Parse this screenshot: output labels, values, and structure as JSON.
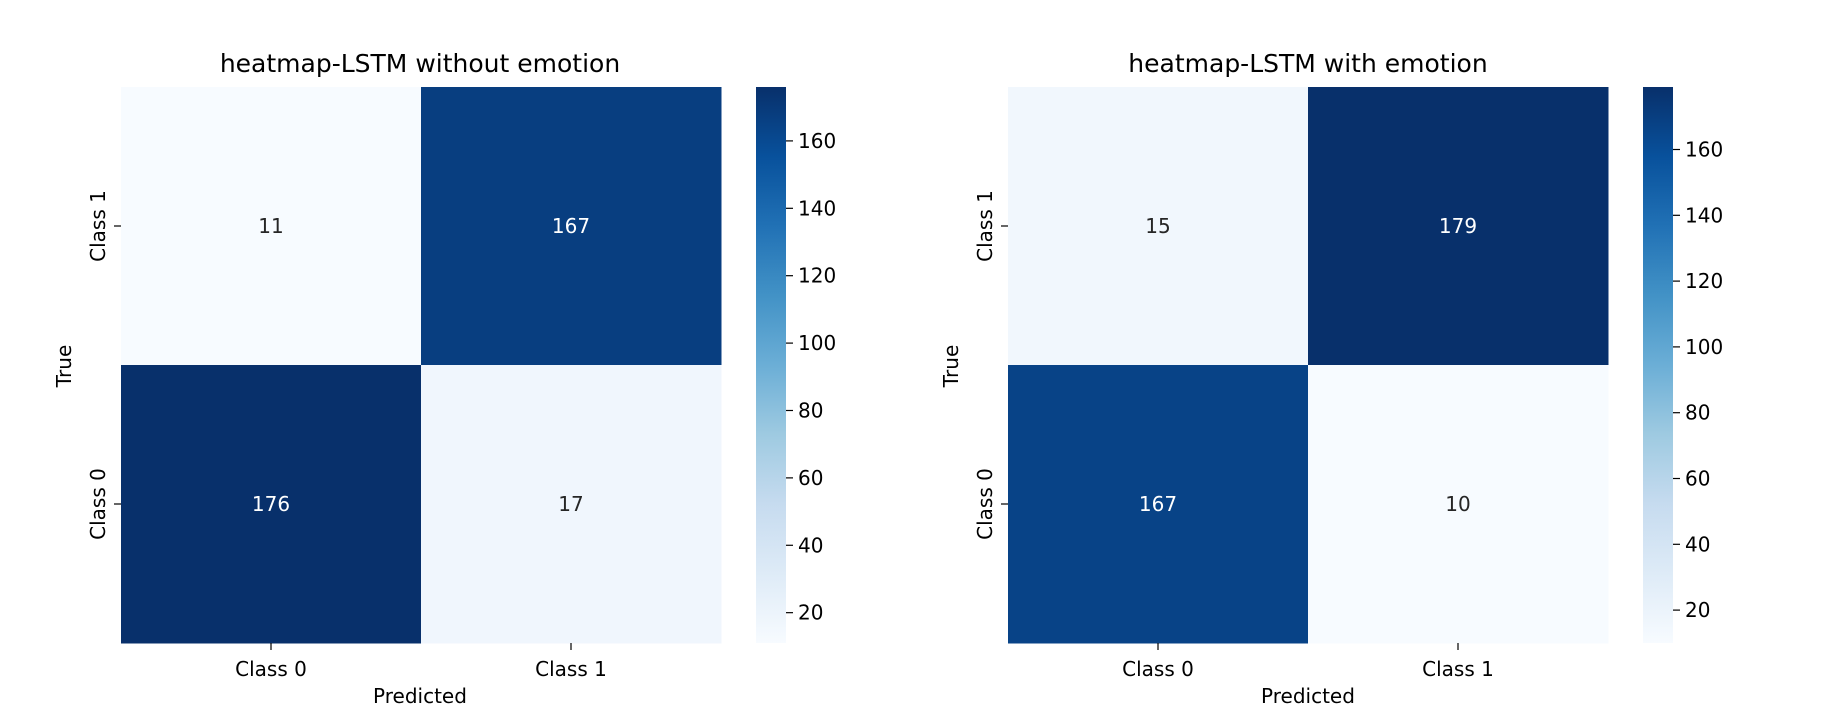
{
  "chart_data": [
    {
      "type": "heatmap",
      "title": "heatmap-LSTM without emotion",
      "xlabel": "Predicted",
      "ylabel": "True",
      "x_categories": [
        "Class 0",
        "Class 1"
      ],
      "y_categories": [
        "Class 1",
        "Class 0"
      ],
      "values": [
        [
          11,
          167
        ],
        [
          176,
          17
        ]
      ],
      "colorbar": {
        "min": 11,
        "max": 176,
        "ticks": [
          20,
          40,
          60,
          80,
          100,
          120,
          140,
          160
        ]
      },
      "colormap": "Blues"
    },
    {
      "type": "heatmap",
      "title": "heatmap-LSTM with emotion",
      "xlabel": "Predicted",
      "ylabel": "True",
      "x_categories": [
        "Class 0",
        "Class 1"
      ],
      "y_categories": [
        "Class 1",
        "Class 0"
      ],
      "values": [
        [
          15,
          179
        ],
        [
          167,
          10
        ]
      ],
      "colorbar": {
        "min": 10,
        "max": 179,
        "ticks": [
          20,
          40,
          60,
          80,
          100,
          120,
          140,
          160
        ]
      },
      "colormap": "Blues"
    }
  ]
}
